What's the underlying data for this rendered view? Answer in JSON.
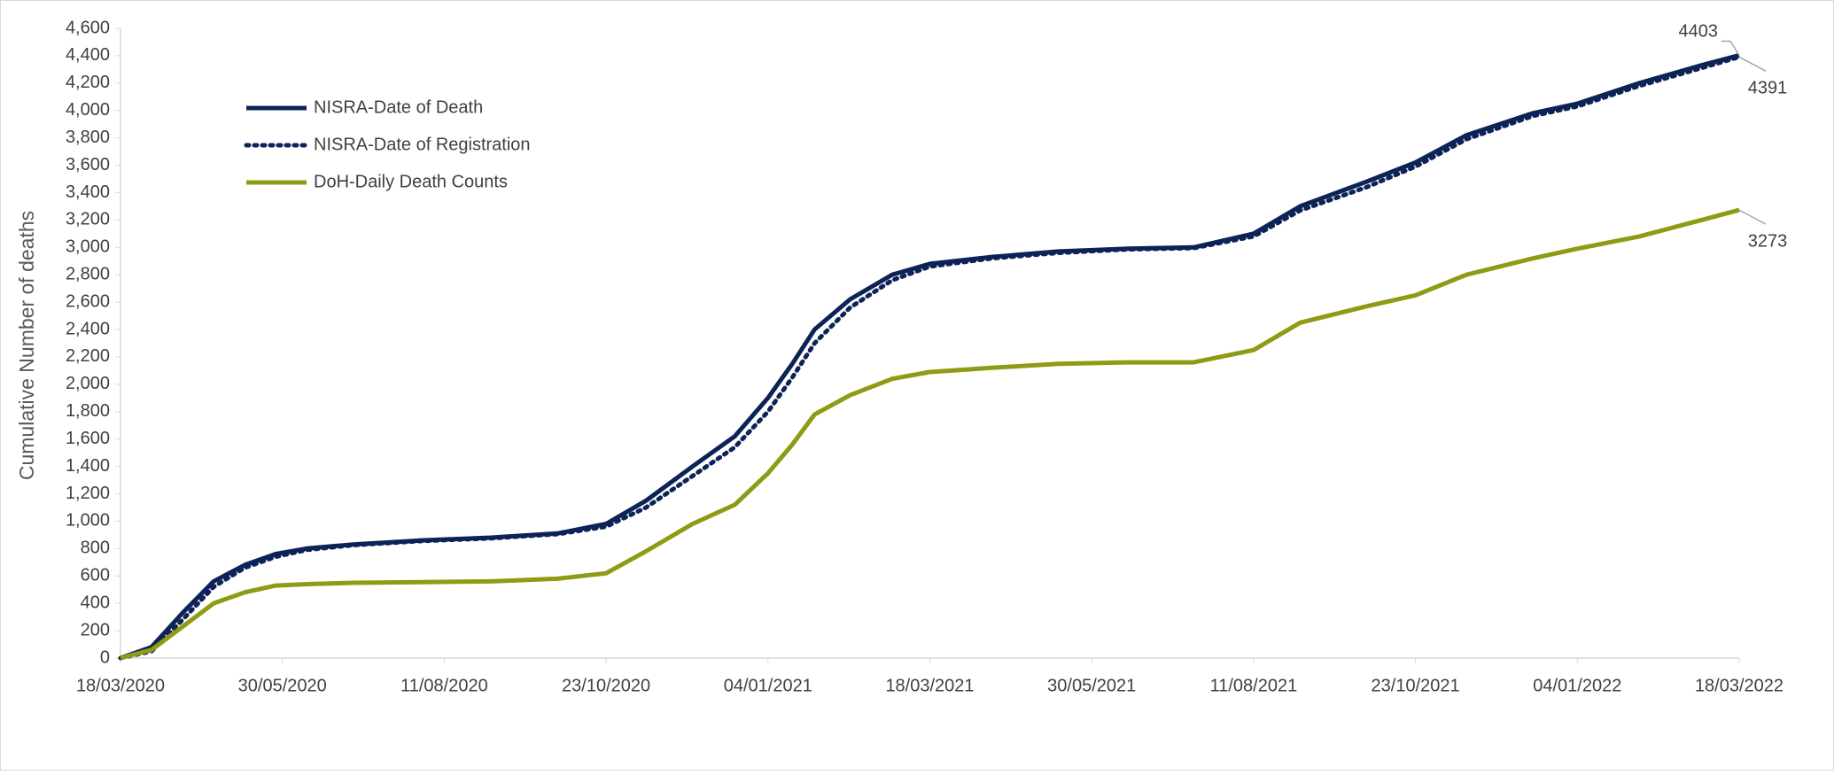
{
  "chart_data": {
    "type": "line",
    "y_axis_label": "Cumulative Number of deaths",
    "x": [
      "18/03/2020",
      "01/04/2020",
      "15/04/2020",
      "29/04/2020",
      "13/05/2020",
      "27/05/2020",
      "10/06/2020",
      "01/07/2020",
      "01/08/2020",
      "01/09/2020",
      "01/10/2020",
      "23/10/2020",
      "10/11/2020",
      "01/12/2020",
      "20/12/2020",
      "04/01/2021",
      "15/01/2021",
      "25/01/2021",
      "10/02/2021",
      "01/03/2021",
      "18/03/2021",
      "15/04/2021",
      "15/05/2021",
      "15/06/2021",
      "15/07/2021",
      "11/08/2021",
      "01/09/2021",
      "01/10/2021",
      "23/10/2021",
      "15/11/2021",
      "15/12/2021",
      "04/01/2022",
      "01/02/2022",
      "01/03/2022",
      "18/03/2022"
    ],
    "series": [
      {
        "name": "NISRA-Date of Death",
        "color": "#0d2357",
        "line_style": "solid",
        "values": [
          0,
          80,
          330,
          560,
          680,
          760,
          800,
          830,
          860,
          880,
          910,
          980,
          1150,
          1400,
          1620,
          1900,
          2150,
          2400,
          2620,
          2800,
          2880,
          2930,
          2970,
          2990,
          3000,
          3100,
          3300,
          3480,
          3620,
          3820,
          3980,
          4050,
          4200,
          4330,
          4403
        ]
      },
      {
        "name": "NISRA-Date of Registration",
        "color": "#0d2357",
        "line_style": "dotted",
        "values": [
          0,
          50,
          280,
          520,
          660,
          740,
          790,
          825,
          855,
          875,
          905,
          960,
          1100,
          1330,
          1540,
          1800,
          2050,
          2300,
          2560,
          2760,
          2860,
          2920,
          2960,
          2985,
          2995,
          3080,
          3270,
          3440,
          3590,
          3790,
          3960,
          4030,
          4180,
          4310,
          4391
        ]
      },
      {
        "name": "DoH-Daily Death Counts",
        "color": "#8f9b14",
        "line_style": "solid",
        "values": [
          0,
          60,
          230,
          400,
          480,
          530,
          540,
          550,
          555,
          560,
          580,
          620,
          780,
          980,
          1120,
          1350,
          1560,
          1780,
          1920,
          2040,
          2090,
          2120,
          2150,
          2160,
          2160,
          2250,
          2450,
          2570,
          2650,
          2800,
          2920,
          2990,
          3080,
          3200,
          3273
        ]
      }
    ],
    "xlim": [
      "18/03/2020",
      "18/03/2022"
    ],
    "xticks": [
      "18/03/2020",
      "30/05/2020",
      "11/08/2020",
      "23/10/2020",
      "04/01/2021",
      "18/03/2021",
      "30/05/2021",
      "11/08/2021",
      "23/10/2021",
      "04/01/2022",
      "18/03/2022"
    ],
    "ylim": [
      0,
      4600
    ],
    "yticks": [
      0,
      200,
      400,
      600,
      800,
      {
        "value": 1000,
        "label": "1,000"
      },
      {
        "value": 1200,
        "label": "1,200"
      },
      {
        "value": 1400,
        "label": "1,400"
      },
      {
        "value": 1600,
        "label": "1,600"
      },
      {
        "value": 1800,
        "label": "1,800"
      },
      {
        "value": 2000,
        "label": "2,000"
      },
      {
        "value": 2200,
        "label": "2,200"
      },
      {
        "value": 2400,
        "label": "2,400"
      },
      {
        "value": 2600,
        "label": "2,600"
      },
      {
        "value": 2800,
        "label": "2,800"
      },
      {
        "value": 3000,
        "label": "3,000"
      },
      {
        "value": 3200,
        "label": "3,200"
      },
      {
        "value": 3400,
        "label": "3,400"
      },
      {
        "value": 3600,
        "label": "3,600"
      },
      {
        "value": 3800,
        "label": "3,800"
      },
      {
        "value": 4000,
        "label": "4,000"
      },
      {
        "value": 4200,
        "label": "4,200"
      },
      {
        "value": 4400,
        "label": "4,400"
      },
      {
        "value": 4600,
        "label": "4,600"
      }
    ],
    "grid": false,
    "legend_position": "upper-left"
  }
}
